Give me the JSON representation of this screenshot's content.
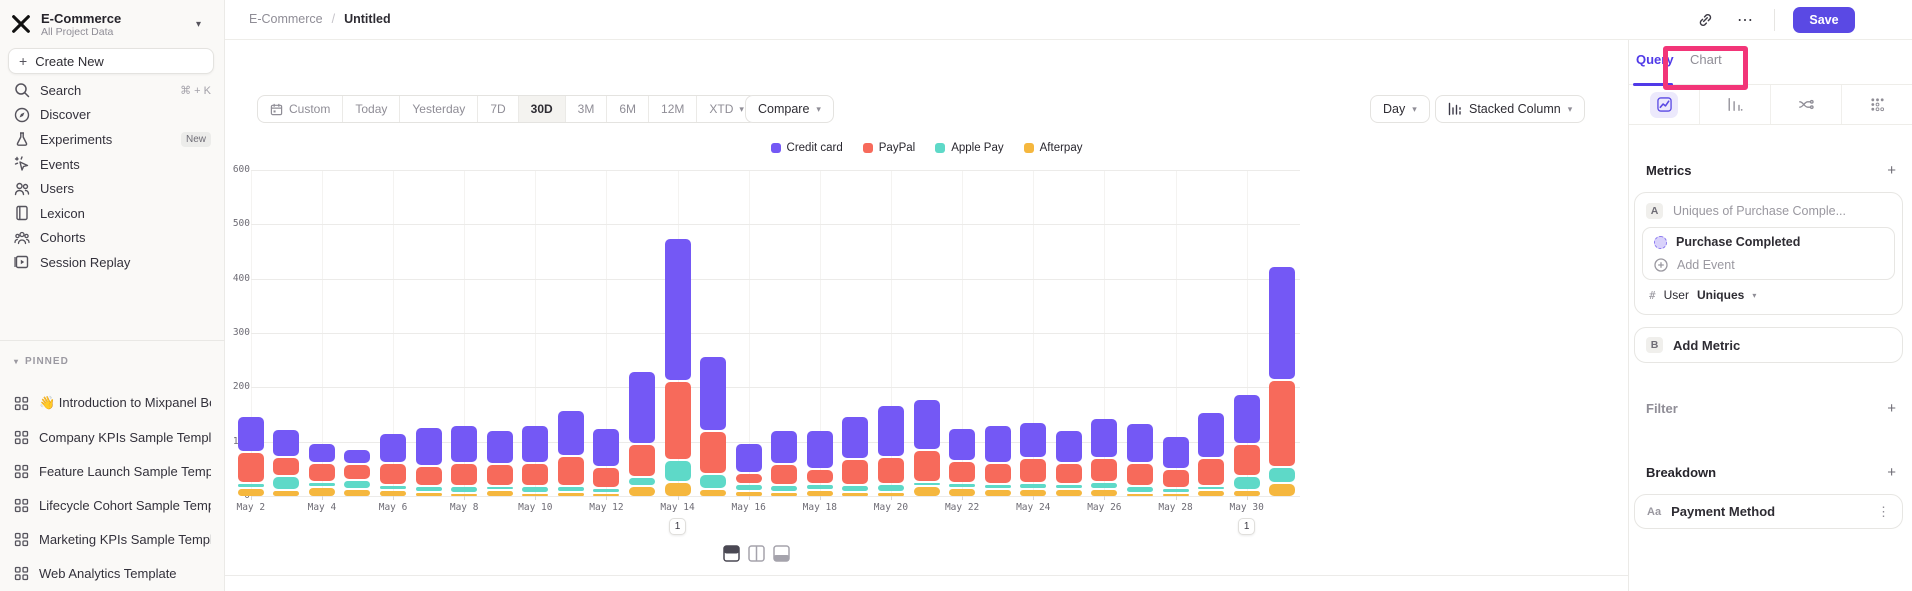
{
  "sidebar": {
    "project": {
      "name": "E-Commerce",
      "subtitle": "All Project Data"
    },
    "create_new_label": "Create New",
    "nav": [
      {
        "icon": "search-icon",
        "label": "Search",
        "shortcut": "⌘ + K"
      },
      {
        "icon": "discover-icon",
        "label": "Discover"
      },
      {
        "icon": "experiments-icon",
        "label": "Experiments",
        "badge": "New"
      },
      {
        "icon": "events-icon",
        "label": "Events"
      },
      {
        "icon": "users-icon",
        "label": "Users"
      },
      {
        "icon": "lexicon-icon",
        "label": "Lexicon"
      },
      {
        "icon": "cohorts-icon",
        "label": "Cohorts"
      },
      {
        "icon": "session-replay-icon",
        "label": "Session Replay"
      }
    ],
    "pinned_header": "PINNED",
    "pinned": [
      "👋 Introduction to Mixpanel Bo",
      "Company KPIs Sample Templat",
      "Feature Launch Sample Templa",
      "Lifecycle Cohort Sample Temp",
      "Marketing KPIs Sample Templat",
      "Web Analytics Template"
    ]
  },
  "topbar": {
    "breadcrumb_parent": "E-Commerce",
    "breadcrumb_sep": "/",
    "breadcrumb_current": "Untitled",
    "more_label": "⋯",
    "save_label": "Save"
  },
  "controls": {
    "ranges": [
      "Custom",
      "Today",
      "Yesterday",
      "7D",
      "30D",
      "3M",
      "6M",
      "12M",
      "XTD"
    ],
    "active_range": "30D",
    "compare_label": "Compare",
    "granularity_label": "Day",
    "chart_type_label": "Stacked Column",
    "chevron": "⌄"
  },
  "panel": {
    "tab_query": "Query",
    "tab_chart": "Chart",
    "metrics_title": "Metrics",
    "metric_badge": "A",
    "metric_summary": "Uniques of Purchase Comple...",
    "event_name": "Purchase Completed",
    "add_event_label": "Add Event",
    "measure_hash": "#",
    "measure_entity": "User",
    "measure_type": "Uniques",
    "add_metric_badge": "B",
    "add_metric_label": "Add Metric",
    "filter_title": "Filter",
    "breakdown_title": "Breakdown",
    "breakdown_badge": "Aa",
    "breakdown_property": "Payment Method",
    "plus": "+",
    "dots_vertical": "⋮"
  },
  "colors": {
    "accent": "#5a49e4",
    "highlight_box": "#f23578",
    "credit_card": "#7458f5",
    "paypal": "#f76a5b",
    "apple_pay": "#5ed9c8",
    "afterpay": "#f5b73e"
  },
  "chart_data": {
    "type": "bar",
    "stacked": true,
    "title": "",
    "xlabel": "",
    "ylabel": "",
    "ylim": [
      0,
      600
    ],
    "yticks": [
      0,
      100,
      200,
      300,
      400,
      500,
      600
    ],
    "grid": true,
    "legend_position": "top-center",
    "x": [
      "May 2",
      "May 3",
      "May 4",
      "May 5",
      "May 6",
      "May 7",
      "May 8",
      "May 9",
      "May 10",
      "May 11",
      "May 12",
      "May 13",
      "May 14",
      "May 15",
      "May 16",
      "May 17",
      "May 18",
      "May 19",
      "May 20",
      "May 21",
      "May 22",
      "May 23",
      "May 24",
      "May 25",
      "May 26",
      "May 27",
      "May 28",
      "May 29",
      "May 30",
      "May 31"
    ],
    "x_ticks_shown_every": 2,
    "stack_bottom_to_top": [
      "Afterpay",
      "Apple Pay",
      "PayPal",
      "Credit card"
    ],
    "series": [
      {
        "name": "Credit card",
        "color": "#7458f5",
        "values": [
          67,
          52,
          36,
          28,
          56,
          70,
          70,
          64,
          70,
          85,
          71,
          135,
          264,
          138,
          54,
          63,
          72,
          80,
          96,
          94,
          62,
          69,
          68,
          60,
          75,
          75,
          60,
          85,
          92,
          210
        ]
      },
      {
        "name": "PayPal",
        "color": "#f76a5b",
        "values": [
          58,
          35,
          35,
          29,
          40,
          38,
          42,
          40,
          44,
          55,
          38,
          60,
          145,
          80,
          21,
          37,
          28,
          48,
          50,
          58,
          41,
          39,
          46,
          39,
          43,
          42,
          36,
          52,
          60,
          160
        ]
      },
      {
        "name": "Apple Pay",
        "color": "#5ed9c8",
        "values": [
          8,
          27,
          9,
          17,
          10,
          10,
          12,
          8,
          12,
          10,
          10,
          17,
          40,
          27,
          13,
          13,
          11,
          12,
          14,
          8,
          9,
          10,
          10,
          10,
          13,
          12,
          8,
          8,
          26,
          30
        ]
      },
      {
        "name": "Afterpay",
        "color": "#f5b73e",
        "values": [
          17,
          12,
          19,
          14,
          12,
          10,
          8,
          12,
          6,
          10,
          5,
          20,
          28,
          15,
          11,
          10,
          13,
          10,
          10,
          20,
          16,
          14,
          15,
          14,
          15,
          8,
          8,
          12,
          12,
          25
        ]
      }
    ],
    "annotations": [
      {
        "x": "May 14",
        "label": "1"
      },
      {
        "x": "May 30",
        "label": "1"
      }
    ]
  }
}
